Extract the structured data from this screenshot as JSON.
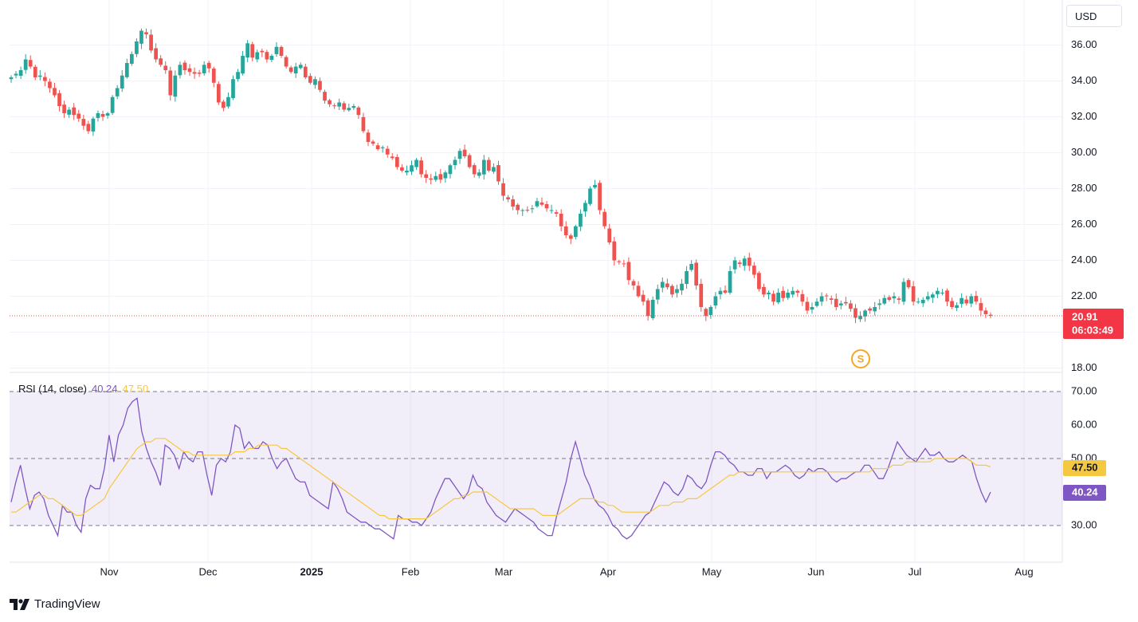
{
  "currency_label": "USD",
  "legend": {
    "rsi_label": "RSI (14, close)",
    "rsi_value": "40.24",
    "ma_value": "47.50"
  },
  "price_tag": {
    "price": "20.91",
    "countdown": "06:03:49"
  },
  "rsi_tags": {
    "ma": "47.50",
    "rsi": "40.24"
  },
  "event_marker": "S",
  "brand": "TradingView",
  "colors": {
    "up": "#26a69a",
    "down": "#ef5350",
    "rsi_line": "#7e57c2",
    "rsi_ma": "#f5c842",
    "rsi_band": "#7e57c2",
    "grid": "#f0f3fa",
    "price_tag_bg": "#f23645",
    "event": "#f5a623"
  },
  "chart_data": [
    {
      "type": "candlestick",
      "title": "",
      "ylim": [
        18,
        37
      ],
      "y_ticks": [
        "36.00",
        "34.00",
        "32.00",
        "30.00",
        "28.00",
        "26.00",
        "24.00",
        "22.00",
        "18.00"
      ],
      "x_ticks": [
        "Nov",
        "Dec",
        "2025",
        "Feb",
        "Mar",
        "Apr",
        "May",
        "Jun",
        "Jul",
        "Aug"
      ],
      "last_price": 20.91,
      "close": [
        34.2,
        34.4,
        34.6,
        35.2,
        34.8,
        34.2,
        34.3,
        34.0,
        33.6,
        33.2,
        32.6,
        32.2,
        32.4,
        32.1,
        31.9,
        31.5,
        31.2,
        31.9,
        32.2,
        32.0,
        32.2,
        33.1,
        33.6,
        34.3,
        35.0,
        35.5,
        36.2,
        36.8,
        36.6,
        35.7,
        35.2,
        34.9,
        34.6,
        33.2,
        34.3,
        34.9,
        34.6,
        34.5,
        34.4,
        34.4,
        34.9,
        34.7,
        33.9,
        32.8,
        32.5,
        33.1,
        34.1,
        34.5,
        35.4,
        36.1,
        35.3,
        35.6,
        35.6,
        35.2,
        35.4,
        35.9,
        35.4,
        34.8,
        34.5,
        34.8,
        34.9,
        34.2,
        33.9,
        34.1,
        33.5,
        32.9,
        32.7,
        32.6,
        32.8,
        32.4,
        32.5,
        32.6,
        32.1,
        31.2,
        30.6,
        30.5,
        30.2,
        30.3,
        29.9,
        29.7,
        29.2,
        29.0,
        29.0,
        29.3,
        29.6,
        28.8,
        28.6,
        28.5,
        28.7,
        28.5,
        28.9,
        29.3,
        29.6,
        30.1,
        29.8,
        29.2,
        28.8,
        28.9,
        29.6,
        29.0,
        29.2,
        28.4,
        27.6,
        27.4,
        27.0,
        26.8,
        26.8,
        26.8,
        26.9,
        27.3,
        27.1,
        26.9,
        26.8,
        26.6,
        25.9,
        25.4,
        25.2,
        25.9,
        26.6,
        27.2,
        28.0,
        28.2,
        26.8,
        25.9,
        25.0,
        24.0,
        23.9,
        23.8,
        22.9,
        22.6,
        22.0,
        21.7,
        20.9,
        21.8,
        22.4,
        22.8,
        22.5,
        22.1,
        22.4,
        22.7,
        23.4,
        23.8,
        22.6,
        21.4,
        20.9,
        21.4,
        22.0,
        22.3,
        22.2,
        23.4,
        24.0,
        23.8,
        24.1,
        23.7,
        23.2,
        22.4,
        22.1,
        22.2,
        21.7,
        22.2,
        21.9,
        22.2,
        22.3,
        22.2,
        21.7,
        21.2,
        21.4,
        21.7,
        22.0,
        22.0,
        21.8,
        21.4,
        21.6,
        21.6,
        21.3,
        20.8,
        20.9,
        21.2,
        21.2,
        21.4,
        21.6,
        21.9,
        21.8,
        22.0,
        21.8,
        22.8,
        22.5,
        21.7,
        21.7,
        21.8,
        22.0,
        22.1,
        22.3,
        22.2,
        21.7,
        21.4,
        21.5,
        21.9,
        21.6,
        22.0,
        21.7,
        21.2,
        21.0,
        20.91
      ]
    },
    {
      "type": "line",
      "title": "RSI (14, close)",
      "ylim": [
        20,
        75
      ],
      "y_ticks": [
        "70.00",
        "60.00",
        "50.00",
        "30.00"
      ],
      "band": [
        30,
        70
      ],
      "mid": 50,
      "series": [
        {
          "name": "RSI",
          "values": [
            37,
            43,
            48,
            41,
            35,
            39,
            40,
            38,
            33,
            30,
            27,
            36,
            34,
            34,
            30,
            28,
            38,
            42,
            41,
            41,
            47,
            57,
            49,
            57,
            60,
            65,
            67,
            68,
            58,
            53,
            49,
            46,
            42,
            54,
            53,
            51,
            47,
            52,
            50,
            49,
            52,
            52,
            45,
            39,
            48,
            50,
            49,
            52,
            60,
            59,
            53,
            55,
            53,
            53,
            55,
            54,
            50,
            47,
            49,
            50,
            47,
            44,
            43,
            43,
            39,
            38,
            37,
            36,
            35,
            43,
            41,
            38,
            34,
            33,
            32,
            31,
            31,
            30,
            29,
            29,
            28,
            27,
            26,
            33,
            32,
            32,
            31,
            31,
            30,
            32,
            34,
            38,
            41,
            44,
            44,
            42,
            40,
            38,
            40,
            45,
            42,
            41,
            37,
            35,
            33,
            32,
            31,
            33,
            35,
            34,
            33,
            32,
            31,
            29,
            28,
            27,
            27,
            33,
            38,
            43,
            50,
            55,
            50,
            45,
            42,
            38,
            36,
            35,
            33,
            30,
            29,
            27,
            26,
            27,
            29,
            31,
            33,
            34,
            37,
            40,
            43,
            42,
            40,
            39,
            41,
            45,
            44,
            42,
            41,
            43,
            48,
            52,
            52,
            51,
            49,
            48,
            46,
            46,
            45,
            45,
            47,
            47,
            44,
            46,
            46,
            47,
            48,
            47,
            45,
            44,
            45,
            47,
            46,
            47,
            47,
            46,
            44,
            43,
            44,
            44,
            45,
            46,
            46,
            48,
            48,
            46,
            44,
            44,
            47,
            51,
            55,
            53,
            51,
            50,
            49,
            51,
            53,
            51,
            51,
            52,
            50,
            49,
            49,
            50,
            51,
            50,
            49,
            44,
            40,
            37,
            40
          ]
        },
        {
          "name": "MA",
          "values": [
            34,
            34,
            35,
            36,
            37,
            38,
            39,
            39,
            38,
            38,
            37,
            36,
            35,
            34,
            33,
            33,
            34,
            35,
            36,
            37,
            38,
            41,
            43,
            45,
            47,
            49,
            51,
            53,
            54,
            55,
            55,
            56,
            56,
            56,
            55,
            54,
            53,
            52,
            52,
            51,
            51,
            51,
            51,
            51,
            51,
            51,
            51,
            51,
            52,
            52,
            52,
            53,
            53,
            54,
            54,
            54,
            54,
            54,
            53,
            53,
            52,
            51,
            50,
            49,
            48,
            47,
            46,
            45,
            44,
            43,
            42,
            41,
            40,
            39,
            38,
            37,
            36,
            35,
            34,
            33,
            33,
            32,
            32,
            32,
            32,
            32,
            32,
            32,
            32,
            32,
            33,
            34,
            35,
            36,
            37,
            38,
            38,
            39,
            39,
            40,
            40,
            40,
            40,
            39,
            38,
            37,
            36,
            35,
            35,
            35,
            35,
            35,
            35,
            34,
            33,
            33,
            33,
            33,
            34,
            35,
            36,
            37,
            38,
            38,
            38,
            38,
            37,
            37,
            36,
            36,
            35,
            34,
            34,
            34,
            34,
            34,
            34,
            34,
            35,
            36,
            36,
            36,
            37,
            37,
            37,
            38,
            38,
            38,
            39,
            40,
            41,
            42,
            43,
            44,
            45,
            45,
            46,
            46,
            46,
            46,
            46,
            46,
            46,
            46,
            46,
            46,
            46,
            46,
            46,
            46,
            46,
            46,
            46,
            46,
            46,
            46,
            46,
            46,
            46,
            46,
            46,
            46,
            46,
            46,
            46,
            47,
            47,
            47,
            47,
            48,
            48,
            48,
            49,
            49,
            49,
            49,
            49,
            49,
            50,
            50,
            50,
            50,
            50,
            50,
            50,
            50,
            49,
            48,
            48,
            48,
            47.5
          ]
        }
      ]
    }
  ]
}
